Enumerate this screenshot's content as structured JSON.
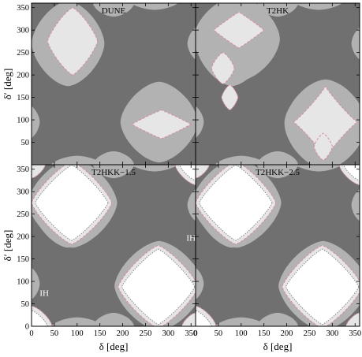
{
  "chart_data": {
    "type": "contour",
    "colors": {
      "dark": "#707070",
      "medium": "#b2b2b2",
      "light": "#e6e6e6",
      "white": "#ffffff",
      "boundary_dashed": "#d98aa0",
      "boundary_dotted": "#8a8a8a"
    },
    "xlabel": "δ [deg]",
    "ylabel": "δ′ [deg]",
    "xlim": [
      0,
      360
    ],
    "ylim": [
      0,
      360
    ],
    "x_ticks": [
      0,
      50,
      100,
      150,
      200,
      250,
      300,
      350
    ],
    "y_ticks_top": [
      50,
      100,
      150,
      200,
      250,
      300,
      350
    ],
    "y_ticks_bottom": [
      0,
      50,
      100,
      150,
      200,
      250,
      300,
      350
    ],
    "panels": [
      {
        "title": "DUNE",
        "annotations": []
      },
      {
        "title": "T2HK",
        "annotations": []
      },
      {
        "title": "T2HKK−1.5",
        "annotations": [
          {
            "text": "IH",
            "x": 28,
            "y": 75
          },
          {
            "text": "IH",
            "x": 350,
            "y": 198
          }
        ]
      },
      {
        "title": "T2HKK−2.5",
        "annotations": []
      }
    ]
  }
}
